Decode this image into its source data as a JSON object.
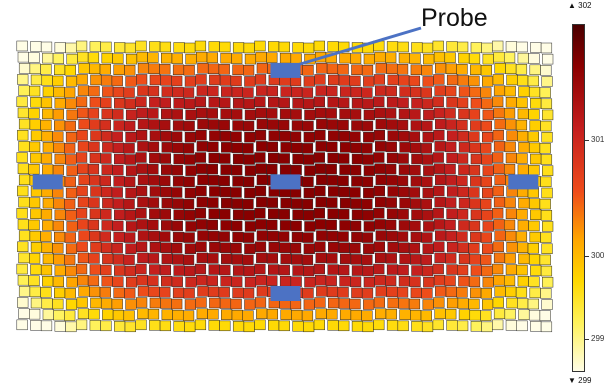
{
  "chart_data": {
    "type": "heatmap",
    "title": "",
    "annotation": "Probe",
    "grid": {
      "rows": 26,
      "cols": 45
    },
    "color_scale": {
      "min": 299,
      "max": 302,
      "min_label": "▼ 299",
      "max_label": "▲ 302",
      "ticks": [
        301,
        300,
        299
      ],
      "colors": [
        "#fffde6",
        "#fff25a",
        "#ffd800",
        "#ffa500",
        "#ee4b1b",
        "#c41e1e",
        "#8b0000",
        "#4a0000"
      ]
    },
    "field": {
      "center_value": 301.6,
      "edge_value": 299.6
    },
    "probe_color": "#4c72c4",
    "probes": [
      {
        "name": "top",
        "row": 2,
        "col": 22
      },
      {
        "name": "left",
        "row": 12,
        "col": 2
      },
      {
        "name": "center",
        "row": 12,
        "col": 22
      },
      {
        "name": "right",
        "row": 12,
        "col": 42
      },
      {
        "name": "bottom",
        "row": 22,
        "col": 22
      }
    ]
  }
}
